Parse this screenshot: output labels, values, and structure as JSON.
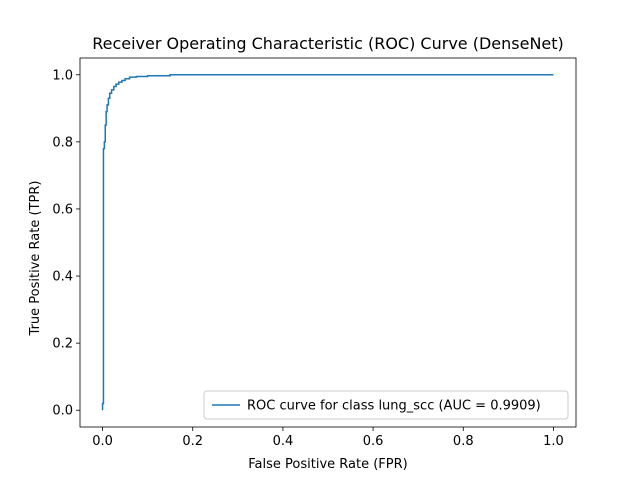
{
  "chart_data": {
    "type": "line",
    "title": "Receiver Operating Characteristic (ROC) Curve (DenseNet)",
    "xlabel": "False Positive Rate (FPR)",
    "ylabel": "True Positive Rate (TPR)",
    "xlim": [
      -0.05,
      1.05
    ],
    "ylim": [
      -0.05,
      1.05
    ],
    "xticks": [
      0.0,
      0.2,
      0.4,
      0.6,
      0.8,
      1.0
    ],
    "xtick_labels": [
      "0.0",
      "0.2",
      "0.4",
      "0.6",
      "0.8",
      "1.0"
    ],
    "yticks": [
      0.0,
      0.2,
      0.4,
      0.6,
      0.8,
      1.0
    ],
    "ytick_labels": [
      "0.0",
      "0.2",
      "0.4",
      "0.6",
      "0.8",
      "1.0"
    ],
    "grid": false,
    "legend_position": "lower-right",
    "series": [
      {
        "name": "ROC curve for class lung_scc (AUC = 0.9909)",
        "color": "#1f77b4",
        "x": [
          0.0,
          0.0,
          0.002,
          0.002,
          0.004,
          0.004,
          0.006,
          0.006,
          0.008,
          0.008,
          0.01,
          0.01,
          0.013,
          0.013,
          0.016,
          0.016,
          0.02,
          0.02,
          0.025,
          0.025,
          0.03,
          0.03,
          0.036,
          0.036,
          0.043,
          0.043,
          0.05,
          0.05,
          0.06,
          0.06,
          0.075,
          0.075,
          0.1,
          0.1,
          0.15,
          0.15,
          1.0
        ],
        "y": [
          0.0,
          0.02,
          0.02,
          0.78,
          0.78,
          0.8,
          0.8,
          0.85,
          0.85,
          0.89,
          0.89,
          0.91,
          0.91,
          0.93,
          0.93,
          0.945,
          0.945,
          0.955,
          0.955,
          0.965,
          0.965,
          0.972,
          0.972,
          0.978,
          0.978,
          0.983,
          0.983,
          0.988,
          0.988,
          0.993,
          0.993,
          0.995,
          0.995,
          0.997,
          0.997,
          1.0,
          1.0
        ]
      }
    ]
  }
}
